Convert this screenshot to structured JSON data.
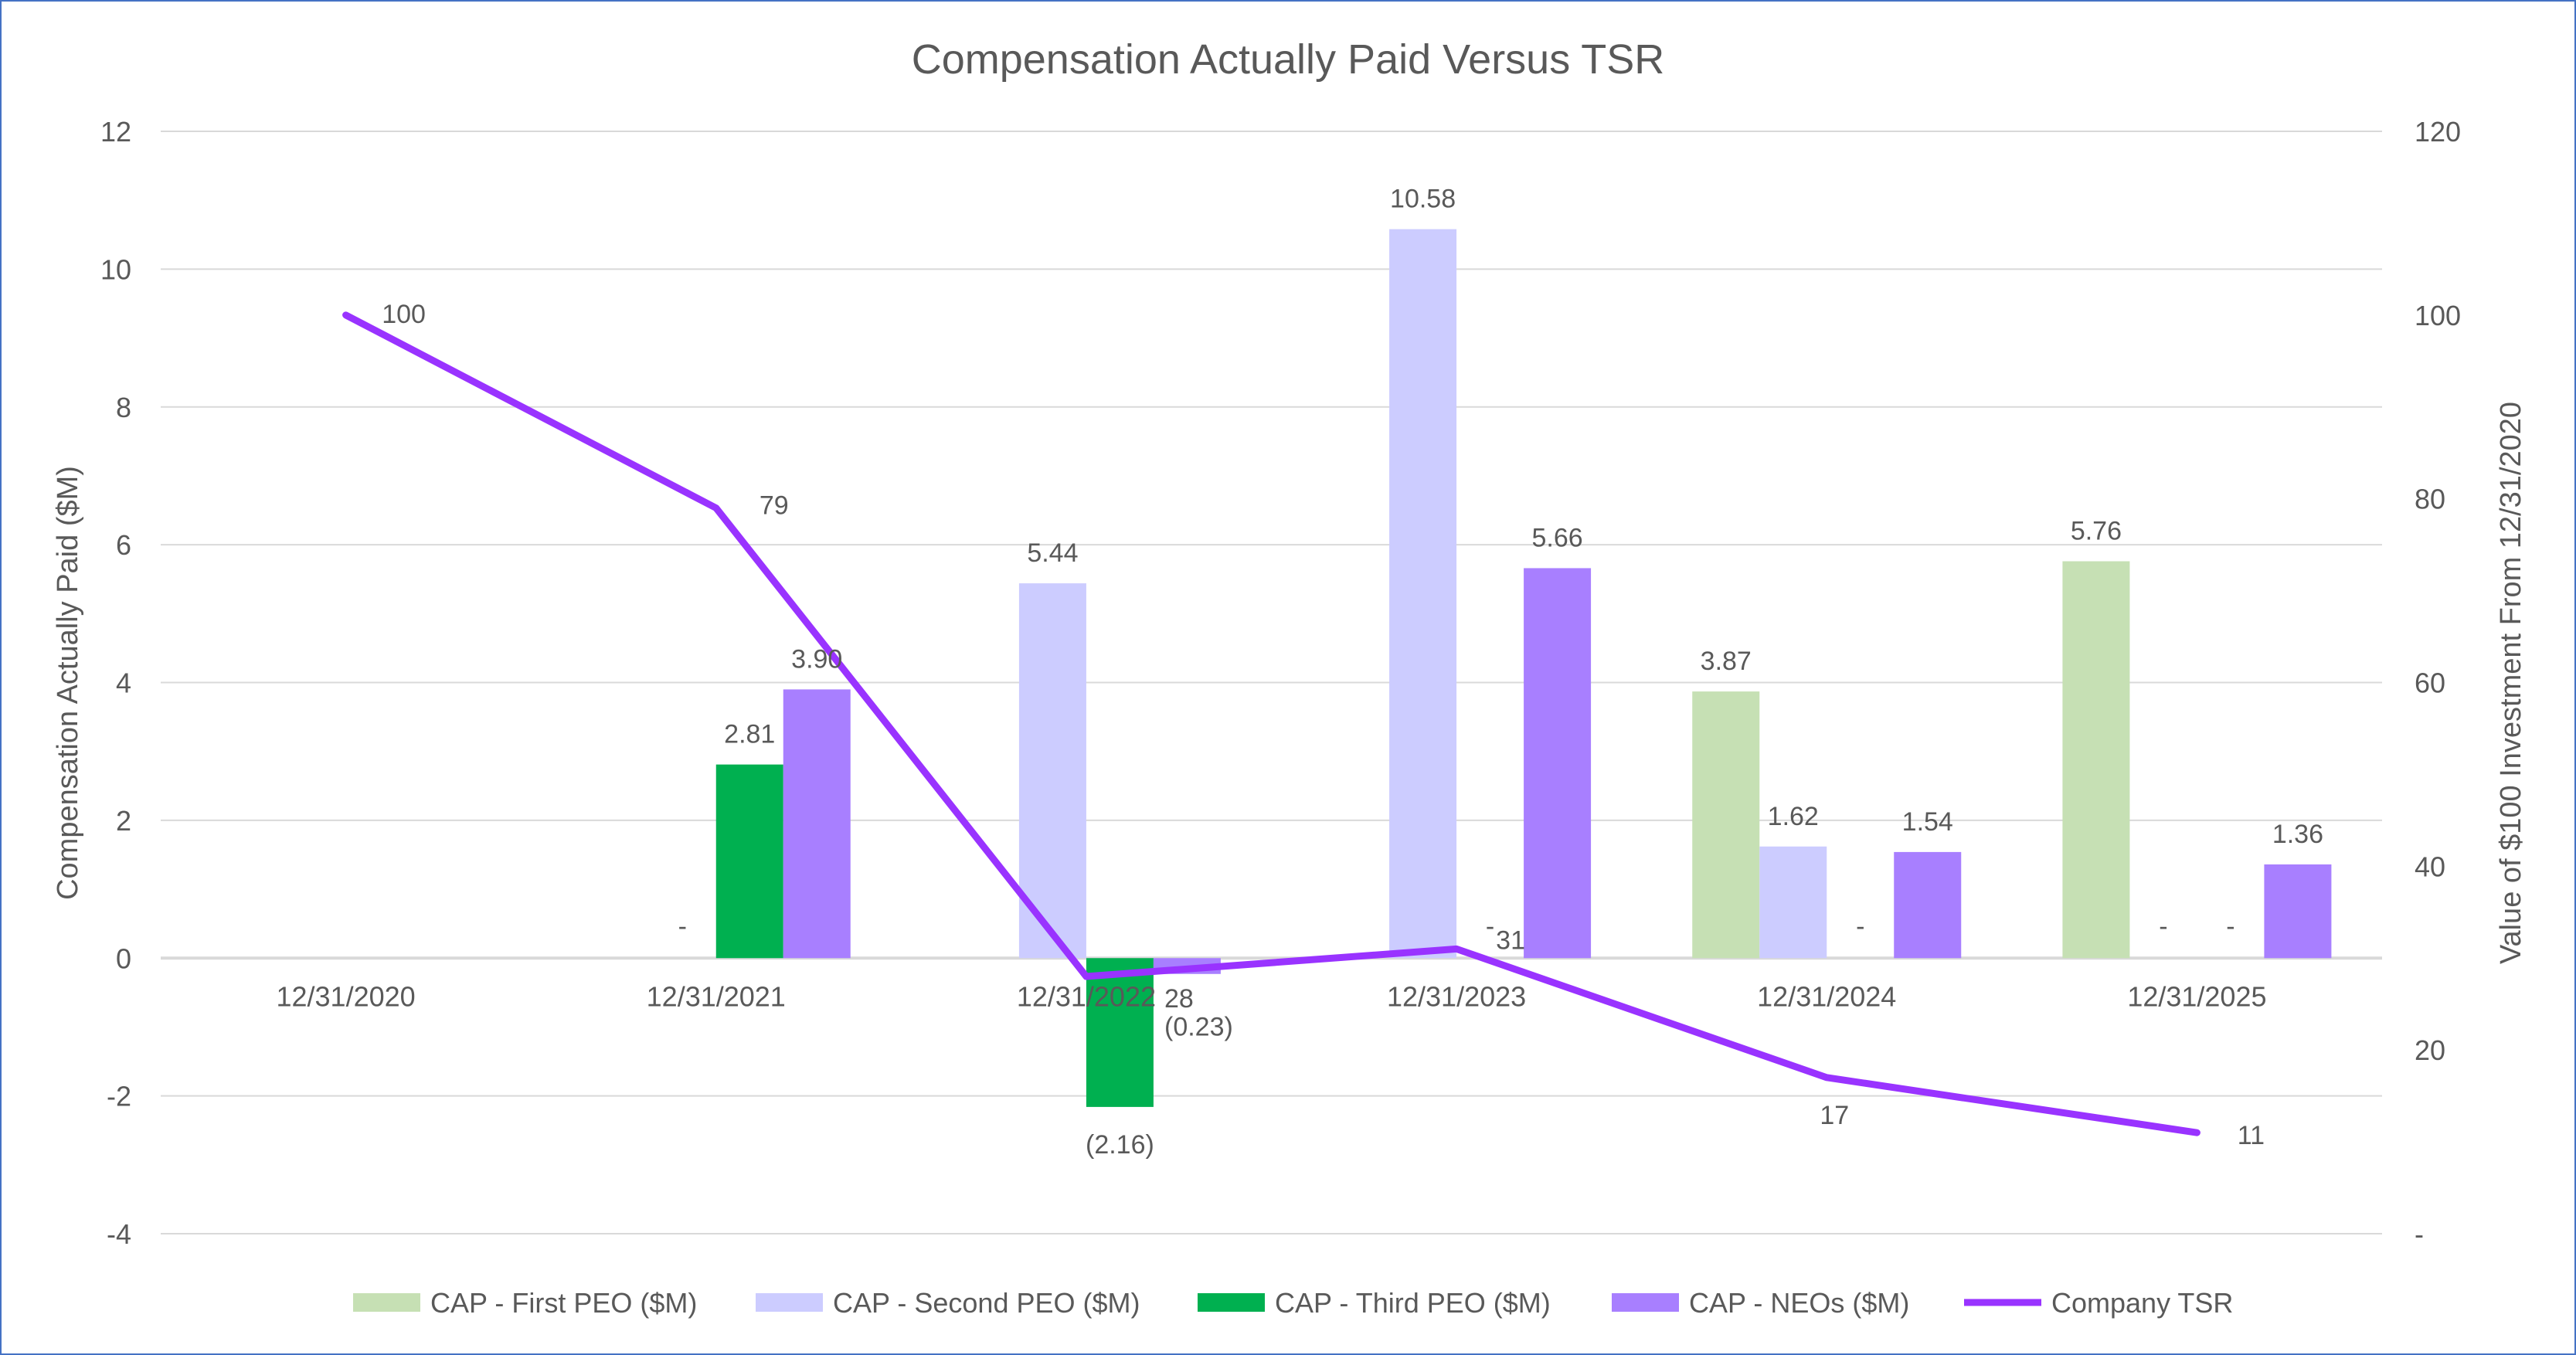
{
  "chart_data": {
    "type": "bar+line",
    "title": "Compensation Actually Paid Versus TSR",
    "ylabel": "Compensation Actually Paid ($M)",
    "y2label": "Value of $100 Investment From 12/31/2020",
    "ylim": [
      -4,
      12
    ],
    "yticks": [
      "-4",
      "-2",
      "0",
      "2",
      "4",
      "6",
      "8",
      "10",
      "12"
    ],
    "y2lim": [
      0,
      120
    ],
    "y2ticks": [
      "-",
      "20",
      "40",
      "60",
      "80",
      "100",
      "120"
    ],
    "grid": true,
    "legend": "bottom",
    "categories": [
      "12/31/2020",
      "12/31/2021",
      "12/31/2022",
      "12/31/2023",
      "12/31/2024",
      "12/31/2025"
    ],
    "series": [
      {
        "name": "CAP - First PEO ($M)",
        "type": "bar",
        "color": "#c6e0b4",
        "values": [
          null,
          null,
          null,
          null,
          3.87,
          5.76
        ],
        "labels": [
          "",
          "",
          "",
          "",
          "3.87",
          "5.76"
        ]
      },
      {
        "name": "CAP - Second PEO ($M)",
        "type": "bar",
        "color": "#ccccff",
        "values": [
          null,
          0,
          5.44,
          10.58,
          1.62,
          0
        ],
        "labels": [
          "",
          "-",
          "5.44",
          "10.58",
          "1.62",
          "-"
        ]
      },
      {
        "name": "CAP - Third PEO ($M)",
        "type": "bar",
        "color": "#00b050",
        "values": [
          null,
          2.81,
          -2.16,
          0,
          0,
          0
        ],
        "labels": [
          "",
          "2.81",
          "(2.16)",
          "-",
          "-",
          "-"
        ]
      },
      {
        "name": "CAP - NEOs ($M)",
        "type": "bar",
        "color": "#a87fff",
        "values": [
          null,
          3.9,
          -0.23,
          5.66,
          1.54,
          1.36
        ],
        "labels": [
          "",
          "3.90",
          "(0.23)",
          "5.66",
          "1.54",
          "1.36"
        ]
      },
      {
        "name": "Company TSR",
        "type": "line",
        "axis": "right",
        "color": "#9933ff",
        "values": [
          100,
          79,
          28,
          31,
          17,
          11
        ],
        "labels": [
          "100",
          "79",
          "28",
          "31",
          "17",
          "11"
        ]
      }
    ]
  }
}
